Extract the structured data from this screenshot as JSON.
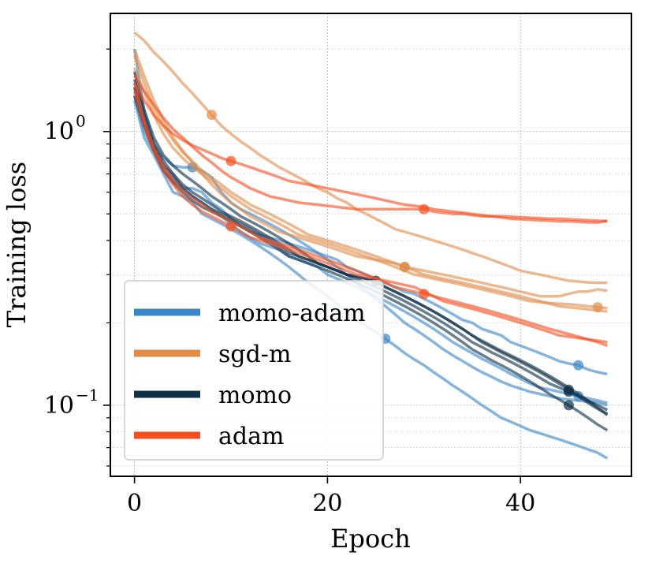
{
  "chart_data": {
    "type": "line",
    "title": "",
    "xlabel": "Epoch",
    "ylabel": "Training loss",
    "yscale": "log",
    "xlim": [
      -2.5,
      51.5
    ],
    "ylim": [
      0.055,
      2.7
    ],
    "xticks": [
      0,
      20,
      40
    ],
    "xtick_labels": [
      "0",
      "20",
      "40"
    ],
    "yticks": [
      0.1,
      1
    ],
    "ytick_labels": [
      {
        "base": "10",
        "exp": "−1"
      },
      {
        "base": "10",
        "exp": "0"
      }
    ],
    "grid": true,
    "legend_position": "lower-left",
    "legend": [
      {
        "name": "momo-adam",
        "color": "#3a87c8"
      },
      {
        "name": "sgd-m",
        "color": "#e08c4a"
      },
      {
        "name": "momo",
        "color": "#0d3149"
      },
      {
        "name": "adam",
        "color": "#f44e20"
      }
    ],
    "series": [
      {
        "name": "momo-adam",
        "color": "#3a87c8",
        "marker_index": 46,
        "values": [
          1.35,
          1.0,
          0.85,
          0.72,
          0.66,
          0.62,
          0.62,
          0.6,
          0.55,
          0.52,
          0.48,
          0.45,
          0.43,
          0.42,
          0.41,
          0.4,
          0.39,
          0.38,
          0.37,
          0.36,
          0.35,
          0.34,
          0.32,
          0.31,
          0.3,
          0.29,
          0.28,
          0.27,
          0.26,
          0.255,
          0.245,
          0.235,
          0.225,
          0.215,
          0.205,
          0.2,
          0.19,
          0.185,
          0.18,
          0.17,
          0.165,
          0.16,
          0.155,
          0.15,
          0.145,
          0.142,
          0.14,
          0.135,
          0.132,
          0.13
        ]
      },
      {
        "name": "momo-adam",
        "color": "#3a87c8",
        "marker_index": 6,
        "values": [
          1.45,
          1.05,
          0.9,
          0.8,
          0.75,
          0.74,
          0.74,
          0.72,
          0.68,
          0.6,
          0.55,
          0.52,
          0.5,
          0.48,
          0.46,
          0.44,
          0.42,
          0.4,
          0.38,
          0.36,
          0.34,
          0.32,
          0.3,
          0.28,
          0.26,
          0.245,
          0.23,
          0.215,
          0.2,
          0.19,
          0.18,
          0.17,
          0.16,
          0.152,
          0.145,
          0.138,
          0.132,
          0.127,
          0.122,
          0.118,
          0.115,
          0.112,
          0.11,
          0.108,
          0.106,
          0.105,
          0.104,
          0.103,
          0.102,
          0.1
        ]
      },
      {
        "name": "momo-adam",
        "color": "#3a87c8",
        "marker_index": 46,
        "values": [
          2.0,
          1.2,
          0.9,
          0.75,
          0.7,
          0.62,
          0.58,
          0.55,
          0.52,
          0.49,
          0.46,
          0.43,
          0.41,
          0.39,
          0.38,
          0.37,
          0.35,
          0.34,
          0.33,
          0.32,
          0.3,
          0.29,
          0.28,
          0.27,
          0.26,
          0.25,
          0.24,
          0.23,
          0.22,
          0.21,
          0.2,
          0.19,
          0.18,
          0.17,
          0.162,
          0.155,
          0.148,
          0.142,
          0.136,
          0.13,
          0.125,
          0.12,
          0.116,
          0.114,
          0.112,
          0.11,
          0.108,
          0.106,
          0.104,
          0.102
        ]
      },
      {
        "name": "momo-adam",
        "color": "#3a87c8",
        "marker_index": 26,
        "values": [
          1.3,
          0.95,
          0.82,
          0.7,
          0.6,
          0.58,
          0.55,
          0.5,
          0.48,
          0.46,
          0.44,
          0.42,
          0.4,
          0.38,
          0.36,
          0.34,
          0.32,
          0.3,
          0.28,
          0.265,
          0.25,
          0.235,
          0.22,
          0.205,
          0.195,
          0.185,
          0.175,
          0.165,
          0.155,
          0.147,
          0.14,
          0.132,
          0.125,
          0.118,
          0.112,
          0.106,
          0.1,
          0.095,
          0.09,
          0.087,
          0.084,
          0.081,
          0.079,
          0.077,
          0.075,
          0.073,
          0.071,
          0.069,
          0.067,
          0.064
        ]
      },
      {
        "name": "sgd-m",
        "color": "#e08c4a",
        "marker_index": 8,
        "values": [
          2.3,
          2.15,
          1.95,
          1.8,
          1.65,
          1.5,
          1.38,
          1.26,
          1.15,
          1.05,
          0.98,
          0.92,
          0.87,
          0.82,
          0.78,
          0.74,
          0.71,
          0.68,
          0.65,
          0.62,
          0.6,
          0.57,
          0.55,
          0.52,
          0.5,
          0.48,
          0.46,
          0.44,
          0.43,
          0.42,
          0.41,
          0.4,
          0.39,
          0.38,
          0.37,
          0.36,
          0.35,
          0.34,
          0.33,
          0.32,
          0.31,
          0.305,
          0.3,
          0.295,
          0.29,
          0.285,
          0.283,
          0.281,
          0.28,
          0.28
        ]
      },
      {
        "name": "sgd-m",
        "color": "#e08c4a",
        "marker_index": 28,
        "values": [
          2.0,
          1.6,
          1.3,
          1.1,
          0.95,
          0.85,
          0.77,
          0.7,
          0.64,
          0.59,
          0.55,
          0.52,
          0.49,
          0.47,
          0.45,
          0.43,
          0.42,
          0.41,
          0.4,
          0.39,
          0.38,
          0.37,
          0.36,
          0.35,
          0.345,
          0.34,
          0.335,
          0.33,
          0.32,
          0.315,
          0.31,
          0.305,
          0.3,
          0.295,
          0.29,
          0.285,
          0.28,
          0.275,
          0.27,
          0.265,
          0.26,
          0.255,
          0.25,
          0.25,
          0.25,
          0.255,
          0.26,
          0.26,
          0.265,
          0.262
        ]
      },
      {
        "name": "sgd-m",
        "color": "#e08c4a",
        "marker_index": 48,
        "values": [
          1.7,
          1.4,
          1.15,
          0.98,
          0.87,
          0.8,
          0.74,
          0.7,
          0.66,
          0.62,
          0.58,
          0.55,
          0.52,
          0.5,
          0.48,
          0.46,
          0.44,
          0.42,
          0.41,
          0.4,
          0.39,
          0.38,
          0.37,
          0.36,
          0.35,
          0.34,
          0.33,
          0.32,
          0.31,
          0.3,
          0.295,
          0.29,
          0.285,
          0.28,
          0.275,
          0.27,
          0.265,
          0.26,
          0.255,
          0.25,
          0.245,
          0.24,
          0.238,
          0.236,
          0.235,
          0.234,
          0.232,
          0.23,
          0.228,
          0.226
        ]
      },
      {
        "name": "sgd-m",
        "color": "#e08c4a",
        "marker_index": 28,
        "values": [
          1.9,
          1.5,
          1.22,
          1.05,
          0.93,
          0.84,
          0.78,
          0.72,
          0.68,
          0.64,
          0.6,
          0.57,
          0.54,
          0.52,
          0.5,
          0.48,
          0.46,
          0.44,
          0.42,
          0.41,
          0.4,
          0.39,
          0.38,
          0.37,
          0.36,
          0.35,
          0.34,
          0.33,
          0.32,
          0.31,
          0.3,
          0.295,
          0.29,
          0.285,
          0.28,
          0.275,
          0.27,
          0.265,
          0.26,
          0.255,
          0.25,
          0.245,
          0.24,
          0.235,
          0.23,
          0.228,
          0.226,
          0.224,
          0.222,
          0.22
        ]
      },
      {
        "name": "momo",
        "color": "#0d3149",
        "marker_index": 45,
        "values": [
          1.65,
          1.2,
          0.95,
          0.82,
          0.75,
          0.7,
          0.66,
          0.62,
          0.58,
          0.55,
          0.52,
          0.49,
          0.47,
          0.45,
          0.43,
          0.41,
          0.39,
          0.37,
          0.35,
          0.33,
          0.32,
          0.31,
          0.3,
          0.295,
          0.29,
          0.28,
          0.27,
          0.26,
          0.25,
          0.24,
          0.23,
          0.22,
          0.21,
          0.2,
          0.19,
          0.18,
          0.17,
          0.163,
          0.156,
          0.15,
          0.144,
          0.138,
          0.132,
          0.126,
          0.12,
          0.114,
          0.108,
          0.102,
          0.097,
          0.093
        ]
      },
      {
        "name": "momo",
        "color": "#0d3149",
        "marker_index": 45,
        "values": [
          1.55,
          1.15,
          0.9,
          0.78,
          0.7,
          0.64,
          0.6,
          0.57,
          0.54,
          0.51,
          0.49,
          0.47,
          0.45,
          0.43,
          0.41,
          0.39,
          0.37,
          0.35,
          0.34,
          0.33,
          0.32,
          0.31,
          0.3,
          0.29,
          0.28,
          0.27,
          0.26,
          0.25,
          0.24,
          0.23,
          0.22,
          0.21,
          0.2,
          0.19,
          0.18,
          0.17,
          0.163,
          0.156,
          0.15,
          0.144,
          0.138,
          0.132,
          0.126,
          0.12,
          0.116,
          0.112,
          0.108,
          0.104,
          0.1,
          0.096
        ]
      },
      {
        "name": "momo",
        "color": "#0d3149",
        "marker_index": 25,
        "values": [
          1.45,
          1.1,
          0.88,
          0.75,
          0.68,
          0.62,
          0.58,
          0.55,
          0.52,
          0.5,
          0.48,
          0.46,
          0.44,
          0.42,
          0.4,
          0.38,
          0.36,
          0.35,
          0.34,
          0.33,
          0.32,
          0.31,
          0.3,
          0.295,
          0.29,
          0.285,
          0.27,
          0.26,
          0.25,
          0.24,
          0.23,
          0.22,
          0.21,
          0.2,
          0.19,
          0.18,
          0.172,
          0.165,
          0.158,
          0.152,
          0.146,
          0.14,
          0.134,
          0.128,
          0.122,
          0.116,
          0.11,
          0.104,
          0.098,
          0.092
        ]
      },
      {
        "name": "momo",
        "color": "#0d3149",
        "marker_index": 45,
        "values": [
          1.35,
          1.05,
          0.85,
          0.72,
          0.65,
          0.6,
          0.56,
          0.53,
          0.51,
          0.49,
          0.47,
          0.45,
          0.43,
          0.41,
          0.39,
          0.37,
          0.35,
          0.34,
          0.33,
          0.32,
          0.31,
          0.3,
          0.29,
          0.28,
          0.27,
          0.26,
          0.25,
          0.24,
          0.23,
          0.22,
          0.21,
          0.2,
          0.19,
          0.18,
          0.17,
          0.16,
          0.153,
          0.146,
          0.14,
          0.134,
          0.128,
          0.122,
          0.116,
          0.11,
          0.105,
          0.1,
          0.095,
          0.09,
          0.085,
          0.081
        ]
      },
      {
        "name": "adam",
        "color": "#f44e20",
        "marker_index": 10,
        "values": [
          1.5,
          1.3,
          1.15,
          1.05,
          0.98,
          0.93,
          0.89,
          0.86,
          0.83,
          0.8,
          0.78,
          0.76,
          0.74,
          0.72,
          0.7,
          0.68,
          0.66,
          0.65,
          0.64,
          0.63,
          0.62,
          0.61,
          0.6,
          0.59,
          0.58,
          0.57,
          0.56,
          0.55,
          0.54,
          0.535,
          0.53,
          0.52,
          0.515,
          0.51,
          0.505,
          0.5,
          0.495,
          0.49,
          0.485,
          0.48,
          0.478,
          0.476,
          0.474,
          0.472,
          0.47,
          0.47,
          0.468,
          0.466,
          0.465,
          0.472
        ]
      },
      {
        "name": "adam",
        "color": "#f44e20",
        "marker_index": 30,
        "values": [
          1.6,
          1.4,
          1.25,
          1.12,
          1.02,
          0.95,
          0.88,
          0.82,
          0.77,
          0.72,
          0.68,
          0.65,
          0.62,
          0.6,
          0.58,
          0.57,
          0.56,
          0.55,
          0.545,
          0.54,
          0.535,
          0.53,
          0.525,
          0.52,
          0.52,
          0.52,
          0.52,
          0.52,
          0.52,
          0.52,
          0.52,
          0.51,
          0.505,
          0.5,
          0.5,
          0.495,
          0.49,
          0.49,
          0.49,
          0.488,
          0.486,
          0.484,
          0.482,
          0.48,
          0.48,
          0.478,
          0.476,
          0.474,
          0.472,
          0.47
        ]
      },
      {
        "name": "adam",
        "color": "#f44e20",
        "marker_index": 10,
        "values": [
          1.4,
          1.05,
          0.85,
          0.72,
          0.64,
          0.58,
          0.54,
          0.51,
          0.49,
          0.47,
          0.45,
          0.43,
          0.41,
          0.4,
          0.39,
          0.38,
          0.37,
          0.36,
          0.35,
          0.34,
          0.33,
          0.32,
          0.31,
          0.3,
          0.295,
          0.29,
          0.285,
          0.28,
          0.275,
          0.27,
          0.26,
          0.25,
          0.24,
          0.235,
          0.23,
          0.225,
          0.22,
          0.215,
          0.21,
          0.205,
          0.2,
          0.195,
          0.19,
          0.185,
          0.18,
          0.178,
          0.176,
          0.174,
          0.172,
          0.17
        ]
      },
      {
        "name": "adam",
        "color": "#f44e20",
        "marker_index": 30,
        "values": [
          1.5,
          1.1,
          0.88,
          0.75,
          0.67,
          0.61,
          0.57,
          0.54,
          0.51,
          0.49,
          0.47,
          0.45,
          0.43,
          0.41,
          0.4,
          0.39,
          0.38,
          0.37,
          0.36,
          0.35,
          0.34,
          0.33,
          0.32,
          0.31,
          0.3,
          0.29,
          0.28,
          0.27,
          0.265,
          0.26,
          0.255,
          0.25,
          0.245,
          0.24,
          0.235,
          0.23,
          0.225,
          0.22,
          0.215,
          0.21,
          0.205,
          0.2,
          0.195,
          0.19,
          0.186,
          0.182,
          0.178,
          0.174,
          0.17,
          0.165
        ]
      }
    ]
  }
}
